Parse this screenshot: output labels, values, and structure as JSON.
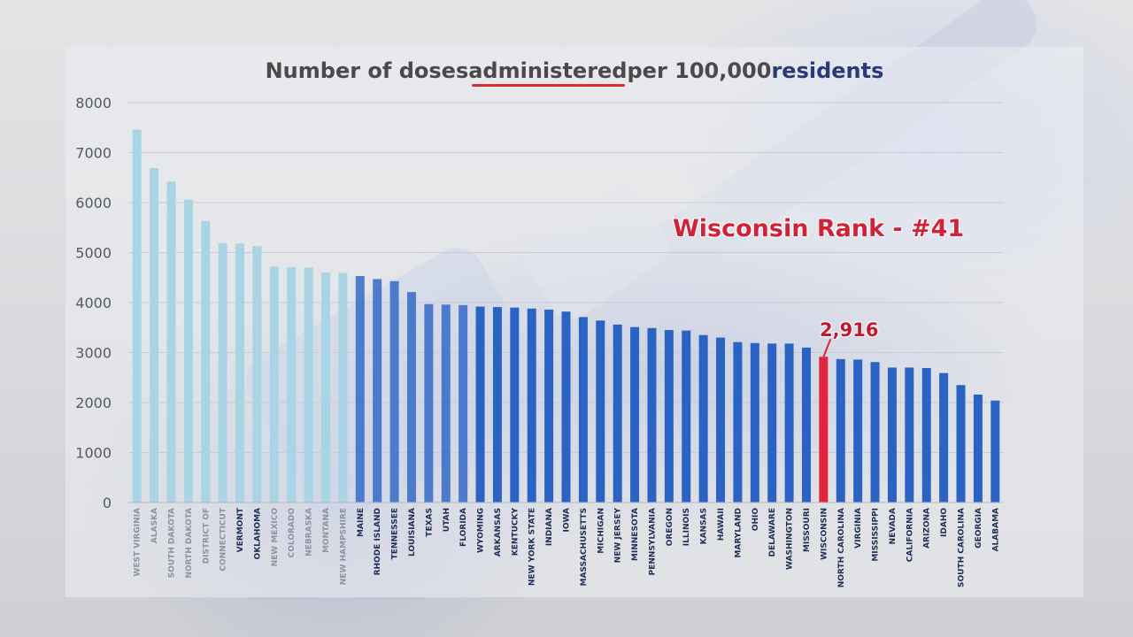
{
  "chart_data": {
    "type": "bar",
    "title": "Number of doses administered per 100,000 residents",
    "title_segments": [
      "Number of doses ",
      "administered",
      " per 100,000 ",
      "residents"
    ],
    "xlabel": "",
    "ylabel": "",
    "ylim": [
      0,
      8000
    ],
    "yticks": [
      0,
      1000,
      2000,
      3000,
      4000,
      5000,
      6000,
      7000,
      8000
    ],
    "ytick_labels": [
      "0",
      "1000",
      "2000",
      "3000",
      "4000",
      "5000",
      "6000",
      "7000",
      "8000"
    ],
    "grid": true,
    "legend": "none",
    "categories": [
      "WEST VIRGINIA",
      "ALASKA",
      "SOUTH DAKOTA",
      "NORTH DAKOTA",
      "DISTRICT OF",
      "CONNECTICUT",
      "VERMONT",
      "OKLAHOMA",
      "NEW MEXICO",
      "COLORADO",
      "NEBRASKA",
      "MONTANA",
      "NEW HAMPSHIRE",
      "MAINE",
      "RHODE ISLAND",
      "TENNESSEE",
      "LOUISIANA",
      "TEXAS",
      "UTAH",
      "FLORIDA",
      "WYOMING",
      "ARKANSAS",
      "KENTUCKY",
      "NEW YORK STATE",
      "INDIANA",
      "IOWA",
      "MASSACHUSETTS",
      "MICHIGAN",
      "NEW JERSEY",
      "MINNESOTA",
      "PENNSYLVANIA",
      "OREGON",
      "ILLINOIS",
      "KANSAS",
      "HAWAII",
      "MARYLAND",
      "OHIO",
      "DELAWARE",
      "WASHINGTON",
      "MISSOURI",
      "WISCONSIN",
      "NORTH CAROLINA",
      "VIRGINIA",
      "MISSISSIPPI",
      "NEVADA",
      "CALIFORNIA",
      "ARIZONA",
      "IDAHO",
      "SOUTH CAROLINA",
      "GEORGIA",
      "ALABAMA"
    ],
    "values": [
      7460,
      6690,
      6420,
      6060,
      5630,
      5190,
      5180,
      5130,
      4720,
      4710,
      4700,
      4600,
      4590,
      4530,
      4470,
      4430,
      4210,
      3970,
      3960,
      3950,
      3920,
      3910,
      3900,
      3880,
      3860,
      3820,
      3710,
      3640,
      3560,
      3510,
      3490,
      3450,
      3440,
      3350,
      3300,
      3210,
      3190,
      3180,
      3180,
      3100,
      2916,
      2870,
      2860,
      2810,
      2700,
      2700,
      2690,
      2590,
      2350,
      2160,
      2040
    ],
    "highlight_category": "WISCONSIN",
    "annotations": {
      "rank": "Wisconsin Rank - #41",
      "value_label": "2,916"
    },
    "colors": {
      "light_bar": "#a8d4e4",
      "dark_bar": "#2a63c4",
      "highlight_bar": "#e0243c",
      "annotation": "#d0233a"
    }
  }
}
